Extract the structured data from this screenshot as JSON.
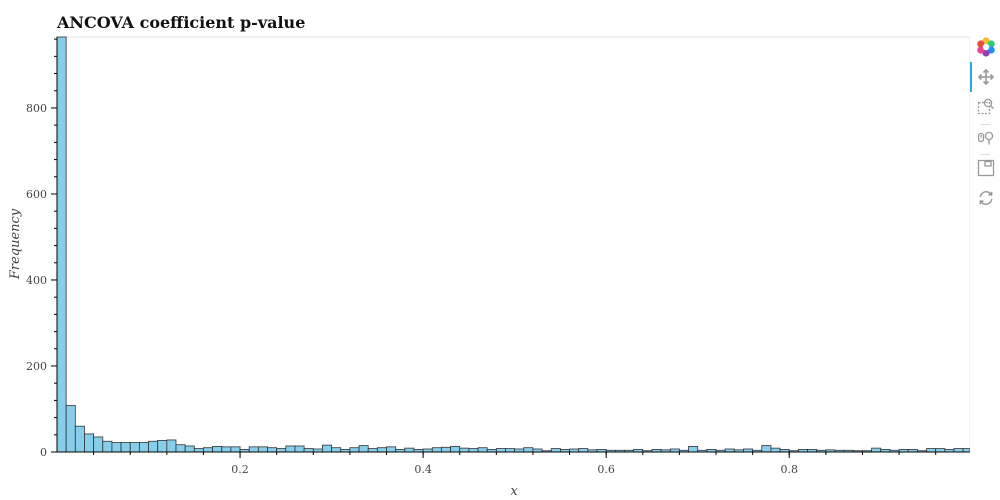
{
  "chart_data": {
    "type": "bar",
    "title": "ANCOVA coefficient p-value",
    "xlabel": "x",
    "ylabel": "Frequency",
    "xlim": [
      0.0,
      0.9975
    ],
    "ylim": [
      0,
      965
    ],
    "bin_width": 0.01,
    "x_ticks": [
      0.2,
      0.4,
      0.6,
      0.8
    ],
    "x_tick_labels": [
      "0.2",
      "0.4",
      "0.6",
      "0.8"
    ],
    "y_ticks": [
      0,
      200,
      400,
      600,
      800
    ],
    "y_tick_labels": [
      "0",
      "200",
      "400",
      "600",
      "800"
    ],
    "bin_starts": [
      0.0,
      0.01,
      0.02,
      0.03,
      0.04,
      0.05,
      0.06,
      0.07,
      0.08,
      0.09,
      0.1,
      0.11,
      0.12,
      0.13,
      0.14,
      0.15,
      0.16,
      0.17,
      0.18,
      0.19,
      0.2,
      0.21,
      0.22,
      0.23,
      0.24,
      0.25,
      0.26,
      0.27,
      0.28,
      0.29,
      0.3,
      0.31,
      0.32,
      0.33,
      0.34,
      0.35,
      0.36,
      0.37,
      0.38,
      0.39,
      0.4,
      0.41,
      0.42,
      0.43,
      0.44,
      0.45,
      0.46,
      0.47,
      0.48,
      0.49,
      0.5,
      0.51,
      0.52,
      0.53,
      0.54,
      0.55,
      0.56,
      0.57,
      0.58,
      0.59,
      0.6,
      0.61,
      0.62,
      0.63,
      0.64,
      0.65,
      0.66,
      0.67,
      0.68,
      0.69,
      0.7,
      0.71,
      0.72,
      0.73,
      0.74,
      0.75,
      0.76,
      0.77,
      0.78,
      0.79,
      0.8,
      0.81,
      0.82,
      0.83,
      0.84,
      0.85,
      0.86,
      0.87,
      0.88,
      0.89,
      0.9,
      0.91,
      0.92,
      0.93,
      0.94,
      0.95,
      0.96,
      0.97,
      0.98,
      0.99
    ],
    "values": [
      965,
      108,
      60,
      42,
      35,
      25,
      22,
      22,
      22,
      22,
      25,
      27,
      28,
      17,
      14,
      8,
      10,
      13,
      12,
      12,
      6,
      12,
      12,
      10,
      8,
      14,
      14,
      8,
      7,
      16,
      10,
      6,
      10,
      15,
      8,
      10,
      12,
      6,
      9,
      6,
      7,
      10,
      11,
      13,
      9,
      8,
      10,
      6,
      8,
      8,
      7,
      10,
      7,
      3,
      8,
      6,
      7,
      8,
      5,
      6,
      4,
      4,
      4,
      6,
      3,
      6,
      5,
      7,
      4,
      13,
      4,
      6,
      4,
      7,
      5,
      7,
      4,
      15,
      9,
      6,
      3,
      6,
      6,
      4,
      5,
      4,
      4,
      3,
      3,
      9,
      6,
      4,
      6,
      6,
      3,
      8,
      8,
      6,
      8,
      8
    ],
    "bar_fill": "#87ceeb",
    "bar_stroke": "#333333",
    "grid": false,
    "legend": "none"
  },
  "toolbar": {
    "logo_icon": "bokeh-logo-icon",
    "items": [
      "pan-icon",
      "box-zoom-icon",
      "wheel-zoom-icon",
      "save-icon",
      "reset-icon"
    ],
    "active_color": "#26aae1"
  }
}
